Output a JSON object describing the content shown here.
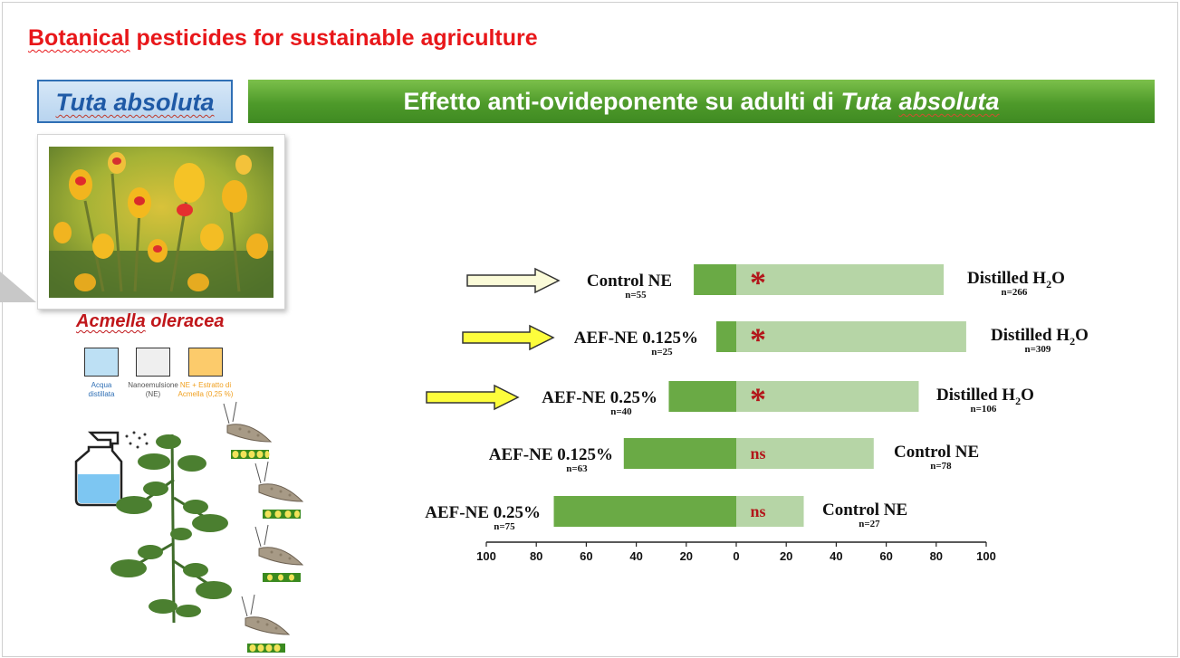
{
  "slide": {
    "title_part1": "Botanical",
    "title_part2": " pesticides for sustainable agriculture",
    "species_label": "Tuta absoluta",
    "banner_text": "Effetto anti-ovideponente su adulti di ",
    "banner_species_part1": "Tuta",
    "banner_species_part2": "absoluta",
    "plant_name_part1": "Acmella",
    "plant_name_part2": " oleracea"
  },
  "treatment_legend": [
    {
      "label_lines": [
        "Acqua",
        "distillata"
      ],
      "color": "#bde0f4",
      "text_color": "#2f6fb5"
    },
    {
      "label_lines": [
        "Nanoemulsione",
        "(NE)"
      ],
      "color": "#efefef",
      "text_color": "#555555"
    },
    {
      "label_lines": [
        "NE + Estratto di",
        "Acmella (0,25 %)"
      ],
      "color": "#fccb6b",
      "text_color": "#f0a020"
    }
  ],
  "colors": {
    "left_bar": "#6aaa45",
    "right_bar": "#b6d5a6",
    "significance": "#b3161a",
    "arrow_highlight": "#fdfd3c",
    "arrow_pale": "#fbfbd8",
    "title_red": "#e8171a"
  },
  "chart_data": {
    "type": "bar",
    "orientation": "horizontal-diverging",
    "xlim": [
      -100,
      100
    ],
    "x_ticks": [
      -100,
      -80,
      -60,
      -40,
      -20,
      0,
      20,
      40,
      60,
      80,
      100
    ],
    "x_tick_labels": [
      "100",
      "80",
      "60",
      "40",
      "20",
      "0",
      "20",
      "40",
      "60",
      "80",
      "100"
    ],
    "rows": [
      {
        "left_label": "Control NE",
        "left_n": "n=55",
        "left_value": 17,
        "right_label_main": "Distilled H",
        "right_label_sub": "2",
        "right_label_end": "O",
        "right_n": "n=266",
        "right_value": 83,
        "significance": "*",
        "arrow": "pale"
      },
      {
        "left_label": "AEF-NE 0.125%",
        "left_n": "n=25",
        "left_value": 8,
        "right_label_main": "Distilled H",
        "right_label_sub": "2",
        "right_label_end": "O",
        "right_n": "n=309",
        "right_value": 92,
        "significance": "*",
        "arrow": "yellow"
      },
      {
        "left_label": "AEF-NE 0.25%",
        "left_n": "n=40",
        "left_value": 27,
        "right_label_main": "Distilled H",
        "right_label_sub": "2",
        "right_label_end": "O",
        "right_n": "n=106",
        "right_value": 73,
        "significance": "*",
        "arrow": "yellow"
      },
      {
        "left_label": "AEF-NE 0.125%",
        "left_n": "n=63",
        "left_value": 45,
        "right_label_main": "Control NE",
        "right_label_sub": "",
        "right_label_end": "",
        "right_n": "n=78",
        "right_value": 55,
        "significance": "ns",
        "arrow": "none"
      },
      {
        "left_label": "AEF-NE 0.25%",
        "left_n": "n=75",
        "left_value": 73,
        "right_label_main": "Control NE",
        "right_label_sub": "",
        "right_label_end": "",
        "right_n": "n=27",
        "right_value": 27,
        "significance": "ns",
        "arrow": "none"
      }
    ]
  }
}
